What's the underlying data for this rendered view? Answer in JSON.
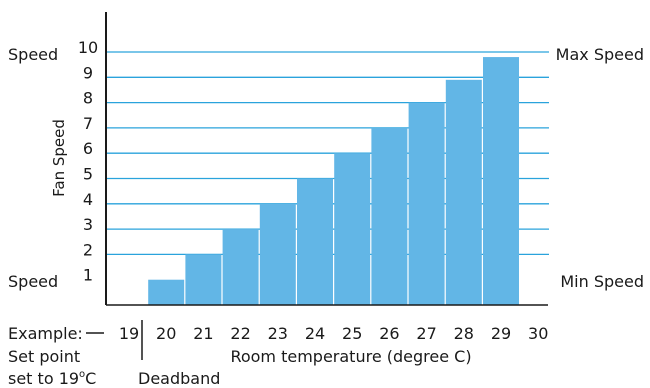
{
  "chart_data": {
    "type": "bar",
    "categories": [
      "20",
      "21",
      "22",
      "23",
      "24",
      "25",
      "26",
      "27",
      "28",
      "29"
    ],
    "values": [
      1,
      2,
      3,
      4,
      5,
      6,
      7,
      8,
      8.9,
      9.8
    ],
    "x_tick_labels": [
      "19",
      "20",
      "21",
      "22",
      "23",
      "24",
      "25",
      "26",
      "27",
      "28",
      "29",
      "30"
    ],
    "y_tick_labels": [
      "1",
      "2",
      "3",
      "4",
      "5",
      "6",
      "7",
      "8",
      "9",
      "10"
    ],
    "ylim": [
      0,
      10.5
    ],
    "xlabel": "Room temperature (degree C)",
    "ylabel": "Fan Speed",
    "grid": "horizontal",
    "legend": "none",
    "bar_color": "#62b6e6",
    "grid_color": "#2aa3dc",
    "axis_color": "#1a1a1a",
    "annotations": {
      "left_top": "Speed",
      "left_bottom": "Speed",
      "right_top": "Max Speed",
      "right_bottom": "Min Speed",
      "example_label": "Example:",
      "set_point_line1": "Set point",
      "set_point_prefix": "set to 19",
      "set_point_degree": "o",
      "set_point_unit": "C",
      "deadband": "Deadband"
    }
  }
}
